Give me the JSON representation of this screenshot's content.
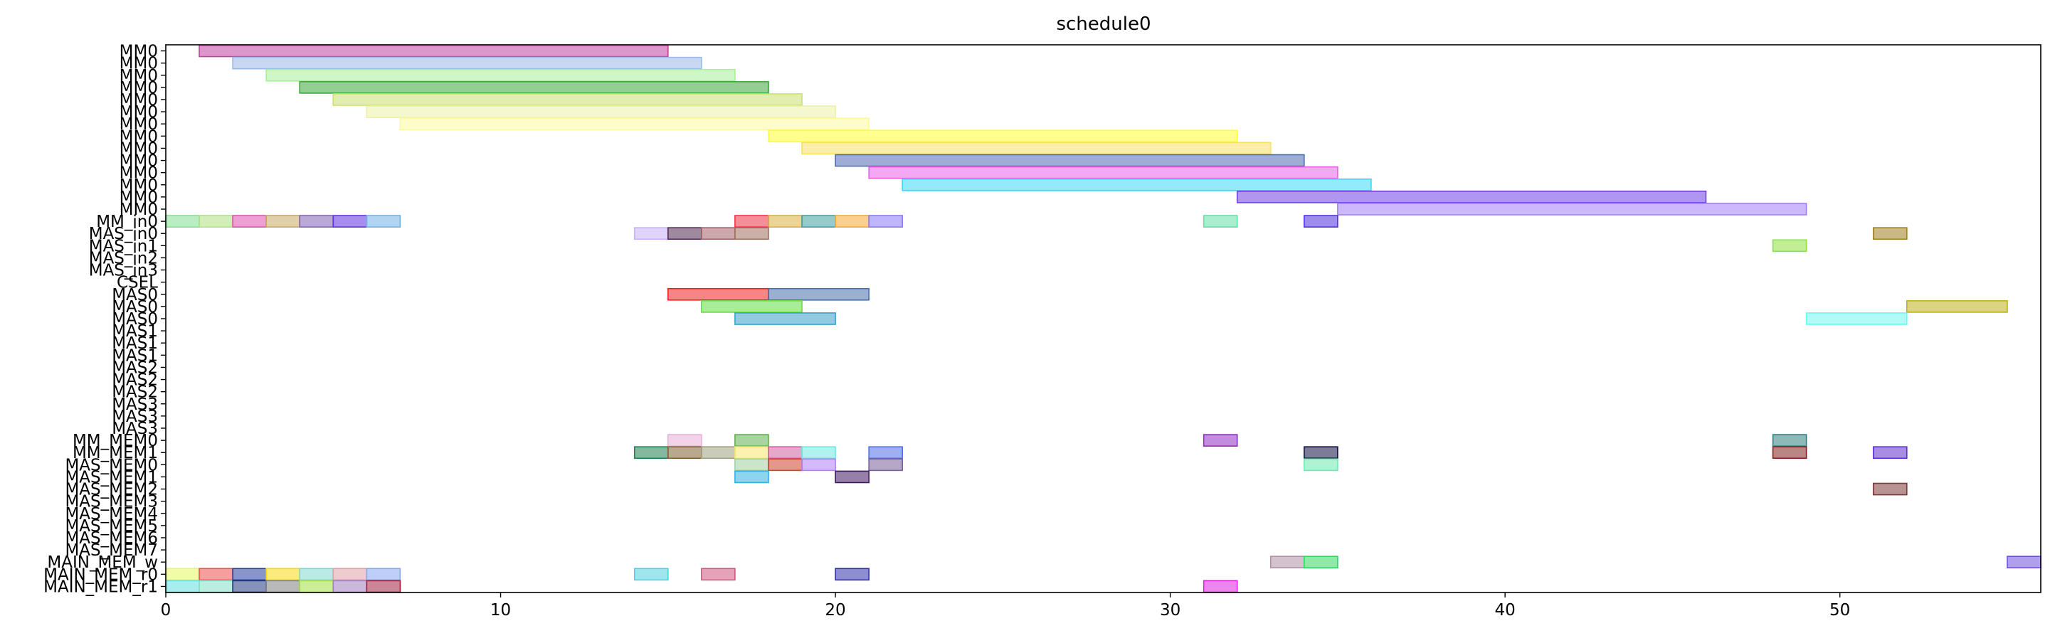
{
  "chart_data": {
    "type": "gantt",
    "title": "schedule0",
    "xlabel": "",
    "ylabel": "",
    "xlim": [
      0,
      56
    ],
    "xticks": [
      0,
      10,
      20,
      30,
      40,
      50
    ],
    "grid": false,
    "legend": "none",
    "rows": [
      "MM0",
      "MM0",
      "MM0",
      "MM0",
      "MM0",
      "MM0",
      "MM0",
      "MM0",
      "MM0",
      "MM0",
      "MM0",
      "MM0",
      "MM0",
      "MM0",
      "MM_in0",
      "MAS_in0",
      "MAS_in1",
      "MAS_in2",
      "MAS_in3",
      "CSEL",
      "MAS0",
      "MAS0",
      "MAS0",
      "MAS1",
      "MAS1",
      "MAS1",
      "MAS2",
      "MAS2",
      "MAS2",
      "MAS3",
      "MAS3",
      "MAS3",
      "MM_MEM0",
      "MM_MEM1",
      "MAS_MEM0",
      "MAS_MEM1",
      "MAS_MEM2",
      "MAS_MEM3",
      "MAS_MEM4",
      "MAS_MEM5",
      "MAS_MEM6",
      "MAS_MEM7",
      "MAIN_MEM_w",
      "MAIN_MEM_r0",
      "MAIN_MEM_r1"
    ],
    "tasks": [
      {
        "row": 0,
        "start": 1,
        "end": 15,
        "color": "#c040a0"
      },
      {
        "row": 1,
        "start": 2,
        "end": 16,
        "color": "#9ab8e8"
      },
      {
        "row": 2,
        "start": 3,
        "end": 17,
        "color": "#a8ef98"
      },
      {
        "row": 3,
        "start": 4,
        "end": 18,
        "color": "#3aa83a"
      },
      {
        "row": 4,
        "start": 5,
        "end": 19,
        "color": "#c8e070"
      },
      {
        "row": 5,
        "start": 6,
        "end": 20,
        "color": "#ecf0a8"
      },
      {
        "row": 6,
        "start": 7,
        "end": 21,
        "color": "#fdf9a0"
      },
      {
        "row": 7,
        "start": 18,
        "end": 32,
        "color": "#ffff30"
      },
      {
        "row": 8,
        "start": 19,
        "end": 33,
        "color": "#f8e060"
      },
      {
        "row": 9,
        "start": 20,
        "end": 34,
        "color": "#506ab0"
      },
      {
        "row": 10,
        "start": 21,
        "end": 35,
        "color": "#e860e8"
      },
      {
        "row": 11,
        "start": 22,
        "end": 36,
        "color": "#38d8f8"
      },
      {
        "row": 12,
        "start": 32,
        "end": 46,
        "color": "#7040e0"
      },
      {
        "row": 13,
        "start": 35,
        "end": 49,
        "color": "#a080f8"
      },
      {
        "row": 14,
        "start": 0,
        "end": 1,
        "color": "#80e090"
      },
      {
        "row": 14,
        "start": 1,
        "end": 2,
        "color": "#b0e080"
      },
      {
        "row": 14,
        "start": 2,
        "end": 3,
        "color": "#e050b0"
      },
      {
        "row": 14,
        "start": 3,
        "end": 4,
        "color": "#c8a860"
      },
      {
        "row": 14,
        "start": 4,
        "end": 5,
        "color": "#8060b8"
      },
      {
        "row": 14,
        "start": 5,
        "end": 6,
        "color": "#6030e0"
      },
      {
        "row": 14,
        "start": 6,
        "end": 7,
        "color": "#70b0e8"
      },
      {
        "row": 14,
        "start": 17,
        "end": 18,
        "color": "#f03040"
      },
      {
        "row": 14,
        "start": 18,
        "end": 19,
        "color": "#d8b040"
      },
      {
        "row": 14,
        "start": 19,
        "end": 20,
        "color": "#40a0a0"
      },
      {
        "row": 14,
        "start": 20,
        "end": 21,
        "color": "#f8a830"
      },
      {
        "row": 14,
        "start": 21,
        "end": 22,
        "color": "#8878f8"
      },
      {
        "row": 14,
        "start": 31,
        "end": 32,
        "color": "#60e0a8"
      },
      {
        "row": 14,
        "start": 34,
        "end": 35,
        "color": "#5030e0"
      },
      {
        "row": 15,
        "start": 14,
        "end": 15,
        "color": "#c8b0f8"
      },
      {
        "row": 15,
        "start": 15,
        "end": 16,
        "color": "#502850"
      },
      {
        "row": 15,
        "start": 16,
        "end": 17,
        "color": "#a06068"
      },
      {
        "row": 15,
        "start": 17,
        "end": 18,
        "color": "#a07060"
      },
      {
        "row": 15,
        "start": 51,
        "end": 52,
        "color": "#a08020"
      },
      {
        "row": 16,
        "start": 48,
        "end": 49,
        "color": "#90e040"
      },
      {
        "row": 20,
        "start": 15,
        "end": 18,
        "color": "#f02020"
      },
      {
        "row": 20,
        "start": 18,
        "end": 21,
        "color": "#4870a8"
      },
      {
        "row": 21,
        "start": 16,
        "end": 19,
        "color": "#60e040"
      },
      {
        "row": 21,
        "start": 52,
        "end": 55,
        "color": "#c0b018"
      },
      {
        "row": 22,
        "start": 17,
        "end": 20,
        "color": "#38a0c8"
      },
      {
        "row": 22,
        "start": 49,
        "end": 52,
        "color": "#70f8f0"
      },
      {
        "row": 32,
        "start": 15,
        "end": 16,
        "color": "#e8b0d8"
      },
      {
        "row": 32,
        "start": 17,
        "end": 18,
        "color": "#60b050"
      },
      {
        "row": 32,
        "start": 31,
        "end": 32,
        "color": "#9030c0"
      },
      {
        "row": 32,
        "start": 48,
        "end": 49,
        "color": "#308080"
      },
      {
        "row": 33,
        "start": 14,
        "end": 15,
        "color": "#208050"
      },
      {
        "row": 33,
        "start": 15,
        "end": 16,
        "color": "#806030"
      },
      {
        "row": 33,
        "start": 16,
        "end": 17,
        "color": "#a0a080"
      },
      {
        "row": 33,
        "start": 17,
        "end": 18,
        "color": "#f8e870"
      },
      {
        "row": 33,
        "start": 18,
        "end": 19,
        "color": "#d060a0"
      },
      {
        "row": 33,
        "start": 19,
        "end": 20,
        "color": "#70e8e0"
      },
      {
        "row": 33,
        "start": 21,
        "end": 22,
        "color": "#5070e8"
      },
      {
        "row": 33,
        "start": 34,
        "end": 35,
        "color": "#101040"
      },
      {
        "row": 33,
        "start": 48,
        "end": 49,
        "color": "#802020"
      },
      {
        "row": 33,
        "start": 51,
        "end": 52,
        "color": "#6030d0"
      },
      {
        "row": 34,
        "start": 17,
        "end": 18,
        "color": "#a0d0a0"
      },
      {
        "row": 34,
        "start": 18,
        "end": 19,
        "color": "#d04030"
      },
      {
        "row": 34,
        "start": 19,
        "end": 20,
        "color": "#b080f8"
      },
      {
        "row": 34,
        "start": 21,
        "end": 22,
        "color": "#786098"
      },
      {
        "row": 34,
        "start": 34,
        "end": 35,
        "color": "#70e8b0"
      },
      {
        "row": 35,
        "start": 17,
        "end": 18,
        "color": "#30b0e0"
      },
      {
        "row": 35,
        "start": 20,
        "end": 21,
        "color": "#401860"
      },
      {
        "row": 36,
        "start": 51,
        "end": 52,
        "color": "#803838"
      },
      {
        "row": 42,
        "start": 33,
        "end": 34,
        "color": "#b090a8"
      },
      {
        "row": 42,
        "start": 34,
        "end": 35,
        "color": "#30d860"
      },
      {
        "row": 42,
        "start": 55,
        "end": 56,
        "color": "#7050e0"
      },
      {
        "row": 43,
        "start": 0,
        "end": 1,
        "color": "#e8f860"
      },
      {
        "row": 43,
        "start": 1,
        "end": 2,
        "color": "#f05050"
      },
      {
        "row": 43,
        "start": 2,
        "end": 3,
        "color": "#2840a0"
      },
      {
        "row": 43,
        "start": 3,
        "end": 4,
        "color": "#f8d810"
      },
      {
        "row": 43,
        "start": 4,
        "end": 5,
        "color": "#80d8d0"
      },
      {
        "row": 43,
        "start": 5,
        "end": 6,
        "color": "#e0a0a8"
      },
      {
        "row": 43,
        "start": 6,
        "end": 7,
        "color": "#88a8f0"
      },
      {
        "row": 43,
        "start": 14,
        "end": 15,
        "color": "#50d0e0"
      },
      {
        "row": 43,
        "start": 16,
        "end": 17,
        "color": "#d05880"
      },
      {
        "row": 43,
        "start": 20,
        "end": 21,
        "color": "#3030a8"
      },
      {
        "row": 44,
        "start": 0,
        "end": 1,
        "color": "#60e0e0"
      },
      {
        "row": 44,
        "start": 1,
        "end": 2,
        "color": "#80e0c8"
      },
      {
        "row": 44,
        "start": 2,
        "end": 3,
        "color": "#203880"
      },
      {
        "row": 44,
        "start": 3,
        "end": 4,
        "color": "#808080"
      },
      {
        "row": 44,
        "start": 4,
        "end": 5,
        "color": "#a0e040"
      },
      {
        "row": 44,
        "start": 5,
        "end": 6,
        "color": "#a080c0"
      },
      {
        "row": 44,
        "start": 6,
        "end": 7,
        "color": "#a02040"
      },
      {
        "row": 44,
        "start": 31,
        "end": 32,
        "color": "#e020e0"
      }
    ]
  }
}
